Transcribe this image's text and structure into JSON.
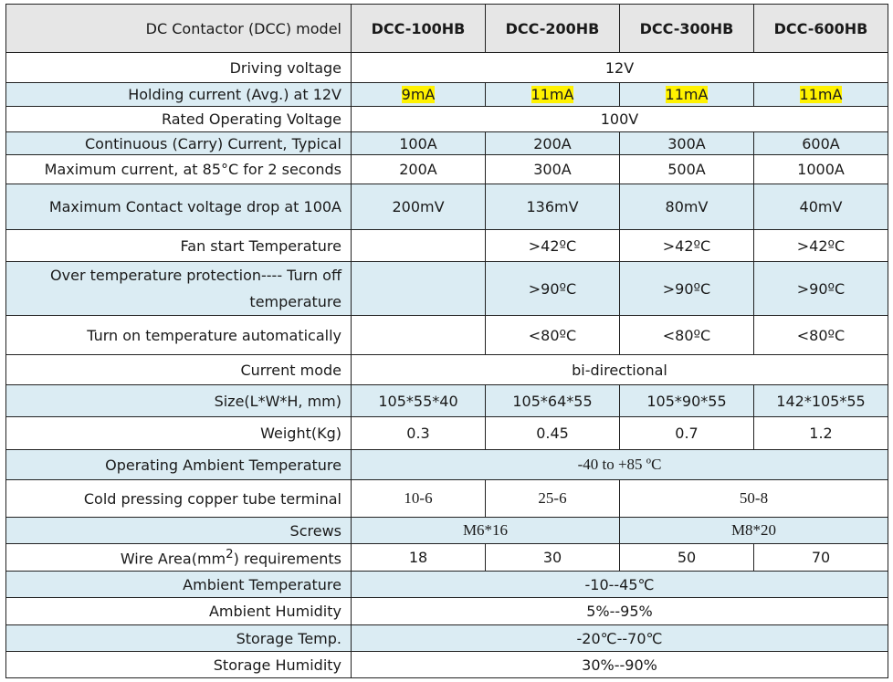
{
  "header": {
    "label": "DC Contactor (DCC) model",
    "models": [
      "DCC-100HB",
      "DCC-200HB",
      "DCC-300HB",
      "DCC-600HB"
    ]
  },
  "rows": {
    "driving_voltage": {
      "label": "Driving voltage",
      "value": "12V"
    },
    "holding_current": {
      "label": "Holding current (Avg.) at 12V",
      "values": [
        "9mA",
        "11mA",
        "11mA",
        "11mA"
      ]
    },
    "rated_voltage": {
      "label": "Rated Operating Voltage",
      "value": "100V"
    },
    "continuous_current": {
      "label": "Continuous (Carry) Current, Typical",
      "values": [
        "100A",
        "200A",
        "300A",
        "600A"
      ]
    },
    "max_current": {
      "label": "Maximum current, at 85°C for 2 seconds",
      "values": [
        "200A",
        "300A",
        "500A",
        "1000A"
      ]
    },
    "contact_drop": {
      "label": "Maximum Contact voltage drop at 100A",
      "values": [
        "200mV",
        "136mV",
        "80mV",
        "40mV"
      ]
    },
    "fan_start": {
      "label": "Fan start Temperature",
      "values": [
        "",
        ">42ºC",
        ">42ºC",
        ">42ºC"
      ]
    },
    "over_temp": {
      "label_line1": "Over temperature protection---- Turn off",
      "label_line2": "temperature",
      "values": [
        "",
        ">90ºC",
        ">90ºC",
        ">90ºC"
      ]
    },
    "turn_on_temp": {
      "label": "Turn on temperature automatically",
      "values": [
        "",
        "<80ºC",
        "<80ºC",
        "<80ºC"
      ]
    },
    "current_mode": {
      "label": "Current mode",
      "value": "bi-directional"
    },
    "size": {
      "label": "Size(L*W*H, mm)",
      "values": [
        "105*55*40",
        "105*64*55",
        "105*90*55",
        "142*105*55"
      ]
    },
    "weight": {
      "label": "Weight(Kg)",
      "values": [
        "0.3",
        "0.45",
        "0.7",
        "1.2"
      ]
    },
    "ambient_operating": {
      "label": "Operating Ambient Temperature",
      "value": "-40 to +85 ºC"
    },
    "terminal": {
      "label": "Cold pressing copper tube terminal",
      "values": [
        "10-6",
        "25-6",
        "50-8"
      ]
    },
    "screws": {
      "label": "Screws",
      "values": [
        "M6*16",
        "M8*20"
      ]
    },
    "wire_area": {
      "label_pre": "Wire Area(mm",
      "label_sup": "2",
      "label_post": ") requirements",
      "values": [
        "18",
        "30",
        "50",
        "70"
      ]
    },
    "ambient_temp": {
      "label": "Ambient Temperature",
      "value": "-10--45℃"
    },
    "ambient_humidity": {
      "label": "Ambient Humidity",
      "value": "5%--95%"
    },
    "storage_temp": {
      "label": "Storage Temp.",
      "value": "-20℃--70℃"
    },
    "storage_humidity": {
      "label": "Storage Humidity",
      "value": "30%--90%"
    }
  }
}
